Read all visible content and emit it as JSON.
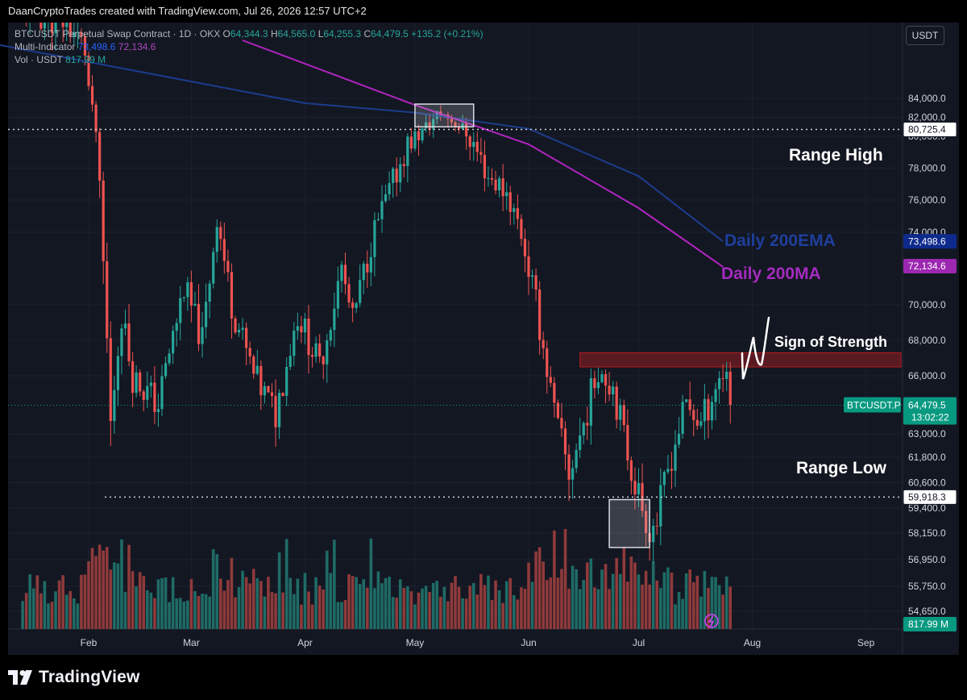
{
  "header": {
    "caption": "DaanCryptoTrades created with TradingView.com, Jul 26, 2026 12:57 UTC+2"
  },
  "legend": {
    "symbol": "BTCUSDT Perpetual Swap Contract · 1D · OKX",
    "o_label": "O",
    "o_value": "64,344.3",
    "h_label": "H",
    "h_value": "64,565.0",
    "l_label": "L",
    "l_value": "64,255.3",
    "c_label": "C",
    "c_value": "64,479.5",
    "change": "+135.2 (+0.21%)",
    "indicator_name": "Multi-Indicator",
    "indicator_ema": "73,498.6",
    "indicator_ma": "72,134.6",
    "vol_name": "Vol · USDT",
    "vol_value": "817.99 M"
  },
  "currency_button": "USDT",
  "brand": {
    "name": "TradingView"
  },
  "colors": {
    "background": "#131722",
    "up": "#26a69a",
    "down": "#ef5350",
    "ema": "#1e3a8a",
    "ma": "#9c27b0",
    "resistance_zone": "#b71c1c",
    "price_tag": "#089981"
  },
  "chart_data": {
    "type": "candlestick",
    "series_meta": [
      "BTCUSDT Perpetual Swap Contract · 1D · OKX"
    ],
    "x_tick_labels": [
      "Feb",
      "Mar",
      "Apr",
      "May",
      "Jun",
      "Jul",
      "Aug",
      "Sep"
    ],
    "y_tick_labels": [
      "84,000.0",
      "82,000.0",
      "80,000.0",
      "78,000.0",
      "76,000.0",
      "74,000.0",
      "70,000.0",
      "68,000.0",
      "66,000.0",
      "63,000.0",
      "61,800.0",
      "60,600.0",
      "59,400.0",
      "58,150.0",
      "56,950.0",
      "55,750.0",
      "54,650.0"
    ],
    "price_tags": [
      {
        "label": "80,725.4",
        "price": 80725.4,
        "style": "dark"
      },
      {
        "label": "73,498.6",
        "price": 73498.6,
        "style": "ema"
      },
      {
        "label": "72,134.6",
        "price": 72134.6,
        "style": "ma"
      },
      {
        "label": "64,479.5",
        "sub": "13:02:22",
        "price": 64479.5,
        "style": "current",
        "symbol": "BTCUSDT.P"
      },
      {
        "label": "59,918.3",
        "price": 59918.3,
        "style": "dark"
      },
      {
        "label": "817.99 M",
        "style": "volume"
      }
    ],
    "horizontal_levels": [
      {
        "name": "range-high",
        "price": 80725.4
      },
      {
        "name": "range-low",
        "price": 59918.3
      }
    ],
    "resistance_zone": {
      "from": "Jun 15",
      "low": 66500,
      "high": 67300
    },
    "highlight_boxes": [
      {
        "name": "top",
        "from": "May 1",
        "to": "May 17",
        "low": 81000,
        "high": 83400
      },
      {
        "name": "bottom",
        "from": "Jun 23",
        "to": "Jul 4",
        "low": 57500,
        "high": 59800
      }
    ],
    "moving_averages": [
      {
        "name": "Daily 200EMA",
        "points": [
          [
            "Jan 1",
            87000
          ],
          [
            "Apr 1",
            83500
          ],
          [
            "May 1",
            82500
          ],
          [
            "Jun 1",
            80800
          ],
          [
            "Jul 1",
            77500
          ],
          [
            "Jul 24",
            73500
          ]
        ]
      },
      {
        "name": "Daily 200MA",
        "points": [
          [
            "Mar 15",
            87000
          ],
          [
            "May 1",
            83300
          ],
          [
            "Jun 1",
            79500
          ],
          [
            "Jul 1",
            75500
          ],
          [
            "Jul 24",
            72100
          ]
        ]
      }
    ],
    "annotations": [
      "Range High",
      "Daily 200EMA",
      "Daily 200MA",
      "Sign of Strength",
      "Range Low"
    ],
    "candles_summary": {
      "start": "Jan 13",
      "end": "Jul 26",
      "note": "drop from ~87,000 in late Jan to ~63,000 Feb 6; range 63-75k Feb-Mar; rally to ~82,500 early May; selloff to ~58,150 late June; recovery to ~64,480",
      "current_price": 64479.5
    }
  }
}
